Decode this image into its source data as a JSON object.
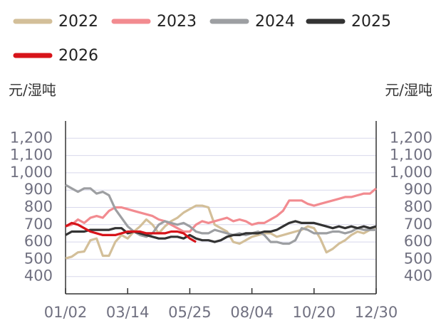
{
  "chart_data": {
    "type": "line",
    "y_label": "元/湿吨",
    "y2_label": "元/湿吨",
    "categories": [
      "01/02",
      null,
      null,
      null,
      null,
      null,
      null,
      null,
      null,
      null,
      "03/14",
      null,
      null,
      null,
      null,
      null,
      null,
      null,
      null,
      null,
      "05/25",
      null,
      null,
      null,
      null,
      null,
      null,
      null,
      null,
      null,
      "08/04",
      null,
      null,
      null,
      null,
      null,
      null,
      null,
      null,
      null,
      "10/20",
      null,
      null,
      null,
      null,
      null,
      null,
      null,
      null,
      null,
      "12/30"
    ],
    "series": [
      {
        "name": "2022",
        "color": "#d3bf99",
        "values": [
          505,
          515,
          540,
          545,
          610,
          620,
          520,
          520,
          600,
          640,
          620,
          660,
          690,
          730,
          700,
          650,
          690,
          720,
          740,
          770,
          790,
          810,
          810,
          800,
          700,
          680,
          660,
          600,
          590,
          610,
          630,
          640,
          650,
          650,
          630,
          640,
          650,
          660,
          670,
          690,
          680,
          620,
          540,
          560,
          590,
          610,
          640,
          660,
          650,
          670,
          690
        ]
      },
      {
        "name": "2023",
        "color": "#f28b90",
        "values": [
          690,
          700,
          730,
          710,
          740,
          750,
          740,
          780,
          800,
          800,
          790,
          780,
          770,
          760,
          750,
          730,
          720,
          700,
          680,
          660,
          660,
          700,
          720,
          710,
          720,
          730,
          740,
          720,
          730,
          720,
          700,
          710,
          710,
          730,
          750,
          780,
          840,
          840,
          840,
          820,
          810,
          820,
          830,
          840,
          850,
          860,
          860,
          870,
          880,
          880,
          910
        ]
      },
      {
        "name": "2024",
        "color": "#9d9fa2",
        "values": [
          930,
          910,
          890,
          910,
          910,
          880,
          890,
          870,
          790,
          740,
          690,
          660,
          640,
          630,
          650,
          700,
          720,
          710,
          700,
          710,
          690,
          660,
          650,
          650,
          670,
          660,
          650,
          640,
          650,
          640,
          650,
          660,
          640,
          600,
          600,
          590,
          590,
          610,
          680,
          670,
          650,
          650,
          650,
          660,
          660,
          650,
          660,
          680,
          670,
          670,
          670
        ]
      },
      {
        "name": "2025",
        "color": "#333333",
        "values": [
          640,
          660,
          660,
          660,
          670,
          670,
          670,
          670,
          680,
          680,
          650,
          660,
          650,
          640,
          630,
          620,
          620,
          630,
          630,
          620,
          640,
          620,
          610,
          610,
          600,
          610,
          630,
          640,
          640,
          650,
          650,
          650,
          660,
          660,
          670,
          690,
          710,
          720,
          710,
          710,
          710,
          700,
          690,
          680,
          690,
          680,
          690,
          680,
          690,
          680,
          690
        ]
      },
      {
        "name": "2026",
        "color": "#d7141a",
        "values": [
          690,
          710,
          700,
          680,
          660,
          650,
          640,
          640,
          640,
          650,
          660,
          660,
          660,
          650,
          650,
          650,
          650,
          660,
          660,
          650,
          620,
          600,
          null,
          null,
          null,
          null,
          null,
          null,
          null,
          null,
          null,
          null,
          null,
          null,
          null,
          null,
          null,
          null,
          null,
          null,
          null,
          null,
          null,
          null,
          null,
          null,
          null,
          null,
          null,
          null,
          null
        ]
      }
    ],
    "ylim": [
      300,
      1300
    ],
    "yticks": [
      400,
      500,
      600,
      700,
      800,
      900,
      {
        "value": 1000,
        "label": "1,000"
      },
      {
        "value": 1100,
        "label": "1,100"
      },
      {
        "value": 1200,
        "label": "1,200"
      }
    ],
    "y2lim": [
      300,
      1300
    ],
    "y2ticks": [
      400,
      500,
      600,
      700,
      800,
      900,
      {
        "value": 1000,
        "label": "1,000"
      },
      {
        "value": 1100,
        "label": "1,100"
      },
      {
        "value": 1200,
        "label": "1,200"
      }
    ],
    "grid": true
  }
}
